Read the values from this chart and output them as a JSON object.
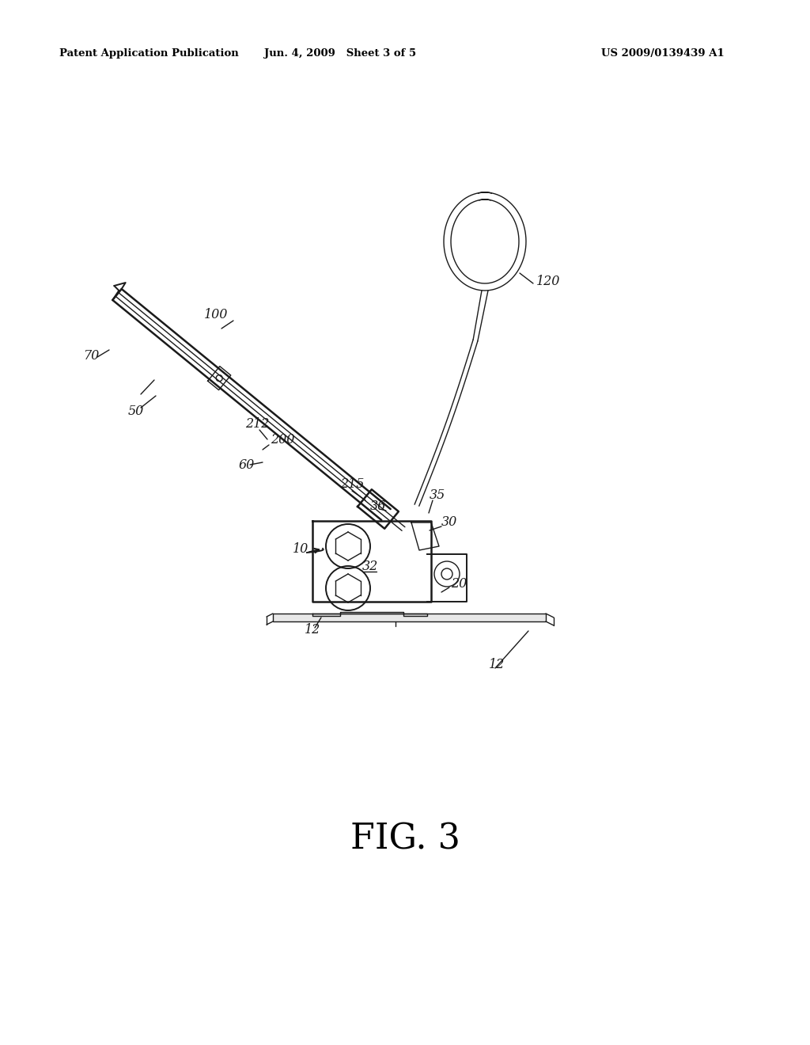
{
  "bg_color": "#ffffff",
  "header_left": "Patent Application Publication",
  "header_center": "Jun. 4, 2009   Sheet 3 of 5",
  "header_right": "US 2009/0139439 A1",
  "fig_label": "FIG. 3"
}
